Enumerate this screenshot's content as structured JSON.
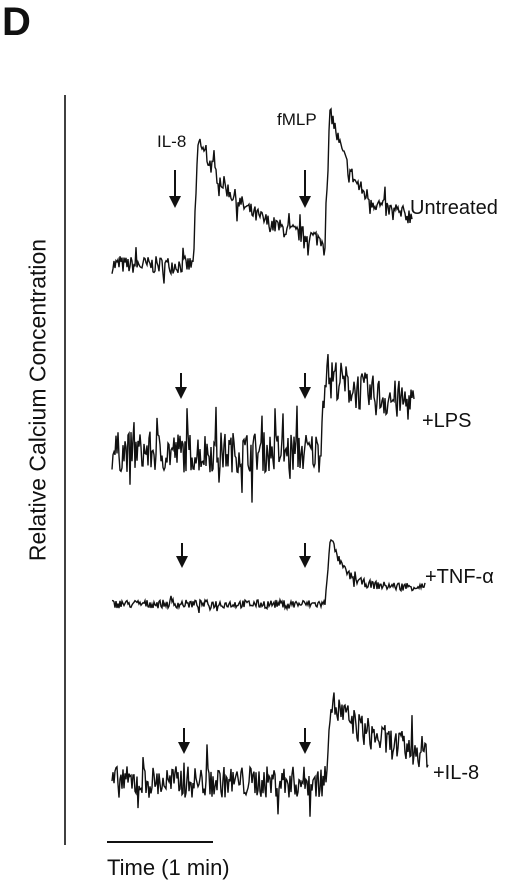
{
  "panel_label": "D",
  "chart_data": {
    "type": "line",
    "ylabel": "Relative Calcium Concentration",
    "xlabel": "",
    "scale_bar": {
      "label": "Time (1 min)",
      "duration_min": 1
    },
    "stimuli": [
      {
        "name": "IL-8",
        "time_min": 0.63
      },
      {
        "name": "fMLP",
        "time_min": 1.9
      }
    ],
    "traces": [
      {
        "name": "Untreated",
        "baseline": 0.0,
        "noise": 0.07,
        "events": [
          {
            "time_min": 0.78,
            "peak": 1.0,
            "decay_min": 0.45,
            "plateau": 0.15
          },
          {
            "time_min": 2.05,
            "peak": 1.05,
            "decay_min": 0.22,
            "plateau": 0.2
          }
        ]
      },
      {
        "name": "+LPS",
        "baseline": 0.0,
        "noise": 0.25,
        "events": [
          {
            "time_min": 2.0,
            "peak": 1.0,
            "decay_min": 0.4,
            "plateau": 0.55
          }
        ]
      },
      {
        "name": "+TNF-α",
        "baseline": 0.0,
        "noise": 0.06,
        "events": [
          {
            "time_min": 2.05,
            "peak": 1.0,
            "decay_min": 0.12,
            "plateau": 0.25
          }
        ]
      },
      {
        "name": "+IL-8",
        "baseline": 0.0,
        "noise": 0.2,
        "events": [
          {
            "time_min": 2.05,
            "peak": 1.0,
            "decay_min": 0.5,
            "plateau": 0.25
          }
        ]
      }
    ],
    "time_range_min": [
      0,
      2.95
    ]
  }
}
